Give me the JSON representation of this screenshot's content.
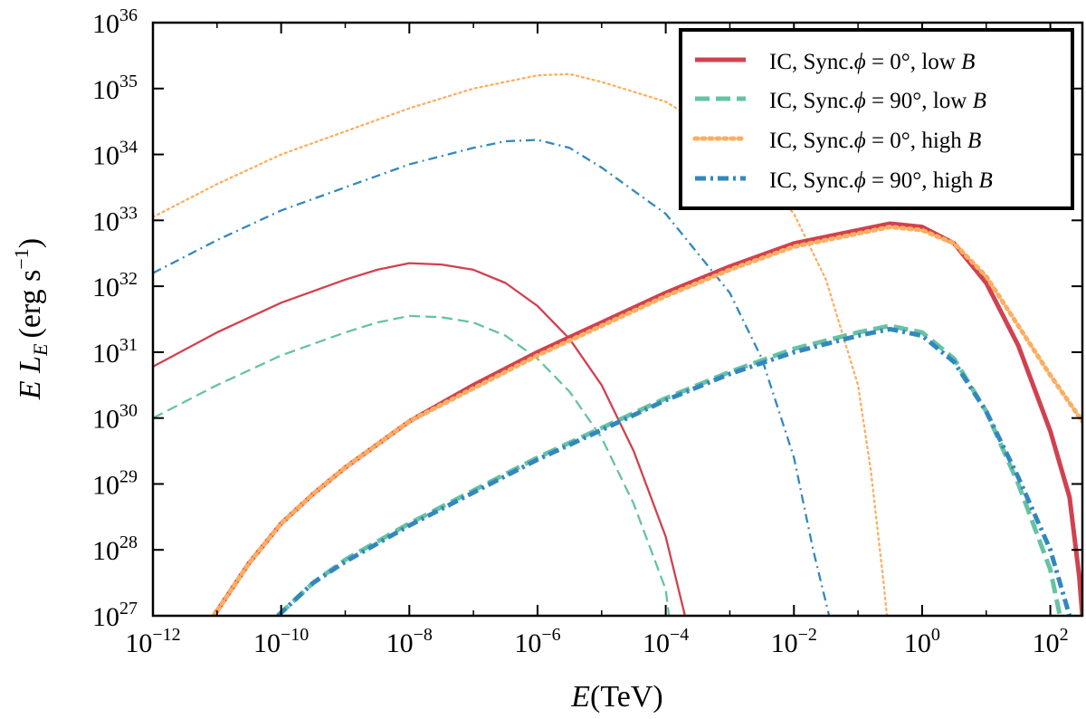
{
  "chart_data": {
    "type": "line",
    "title": "",
    "xlabel": {
      "var": "E",
      "unit": "(TeV)"
    },
    "ylabel": {
      "var": "E L",
      "sub": "E",
      "unit_open": "(erg s",
      "unit_sup": "−1",
      "unit_close": ")"
    },
    "xscale": "log",
    "yscale": "log",
    "xlim_log10": [
      -12,
      2.5
    ],
    "ylim_log10": [
      27,
      36
    ],
    "xticks": [
      {
        "base": "10",
        "exp": "−12",
        "log": -12
      },
      {
        "base": "10",
        "exp": "−10",
        "log": -10
      },
      {
        "base": "10",
        "exp": "−8",
        "log": -8
      },
      {
        "base": "10",
        "exp": "−6",
        "log": -6
      },
      {
        "base": "10",
        "exp": "−4",
        "log": -4
      },
      {
        "base": "10",
        "exp": "−2",
        "log": -2
      },
      {
        "base": "10",
        "exp": "0",
        "log": 0
      },
      {
        "base": "10",
        "exp": "2",
        "log": 2
      }
    ],
    "yticks": [
      {
        "base": "10",
        "exp": "27",
        "log": 27
      },
      {
        "base": "10",
        "exp": "28",
        "log": 28
      },
      {
        "base": "10",
        "exp": "29",
        "log": 29
      },
      {
        "base": "10",
        "exp": "30",
        "log": 30
      },
      {
        "base": "10",
        "exp": "31",
        "log": 31
      },
      {
        "base": "10",
        "exp": "32",
        "log": 32
      },
      {
        "base": "10",
        "exp": "33",
        "log": 33
      },
      {
        "base": "10",
        "exp": "34",
        "log": 34
      },
      {
        "base": "10",
        "exp": "35",
        "log": 35
      },
      {
        "base": "10",
        "exp": "36",
        "log": 36
      }
    ],
    "legend": {
      "placement": "top-right",
      "entries": [
        {
          "prefix": "IC, Sync.",
          "phi": "ϕ",
          "eq": " = 0°, ",
          "b_text": "low ",
          "b_var": "B",
          "color": "#d1414f",
          "dash": "solid"
        },
        {
          "prefix": "IC, Sync.",
          "phi": "ϕ",
          "eq": " = 90°, ",
          "b_text": "low ",
          "b_var": "B",
          "color": "#66c2a5",
          "dash": "dashed"
        },
        {
          "prefix": "IC, Sync.",
          "phi": "ϕ",
          "eq": " = 0°, ",
          "b_text": "high ",
          "b_var": "B",
          "color": "#fdae61",
          "dash": "dotted"
        },
        {
          "prefix": "IC, Sync.",
          "phi": "ϕ",
          "eq": " = 90°, ",
          "b_text": "high ",
          "b_var": "B",
          "color": "#3288bd",
          "dash": "dashdot"
        }
      ]
    },
    "series": [
      {
        "name": "Sync, ϕ=0°, low B",
        "component": "synchrotron",
        "color": "#d1414f",
        "dash": "solid",
        "width": "thin",
        "points": [
          [
            -12,
            30.78
          ],
          [
            -11,
            31.3
          ],
          [
            -10,
            31.75
          ],
          [
            -9,
            32.1
          ],
          [
            -8.5,
            32.25
          ],
          [
            -8,
            32.35
          ],
          [
            -7.5,
            32.33
          ],
          [
            -7,
            32.25
          ],
          [
            -6.5,
            32.05
          ],
          [
            -6,
            31.7
          ],
          [
            -5.5,
            31.2
          ],
          [
            -5,
            30.5
          ],
          [
            -4.5,
            29.5
          ],
          [
            -4,
            28.2
          ],
          [
            -3.7,
            27
          ]
        ]
      },
      {
        "name": "Sync, ϕ=90°, low B",
        "component": "synchrotron",
        "color": "#66c2a5",
        "dash": "dashed",
        "width": "thin",
        "points": [
          [
            -12,
            30.0
          ],
          [
            -11,
            30.5
          ],
          [
            -10,
            30.95
          ],
          [
            -9,
            31.3
          ],
          [
            -8.5,
            31.45
          ],
          [
            -8,
            31.55
          ],
          [
            -7.5,
            31.53
          ],
          [
            -7,
            31.45
          ],
          [
            -6.5,
            31.25
          ],
          [
            -6,
            30.9
          ],
          [
            -5.5,
            30.4
          ],
          [
            -5,
            29.7
          ],
          [
            -4.5,
            28.7
          ],
          [
            -4,
            27.4
          ],
          [
            -3.95,
            27
          ]
        ]
      },
      {
        "name": "Sync, ϕ=0°, high B",
        "component": "synchrotron",
        "color": "#fdae61",
        "dash": "dotted",
        "width": "thin",
        "points": [
          [
            -12,
            33.05
          ],
          [
            -11,
            33.55
          ],
          [
            -10,
            34.0
          ],
          [
            -9,
            34.35
          ],
          [
            -8,
            34.7
          ],
          [
            -7,
            35.0
          ],
          [
            -6,
            35.2
          ],
          [
            -5.5,
            35.22
          ],
          [
            -5,
            35.1
          ],
          [
            -4,
            34.8
          ],
          [
            -3,
            34.2
          ],
          [
            -2,
            33.1
          ],
          [
            -1.5,
            32.1
          ],
          [
            -1,
            30.5
          ],
          [
            -0.8,
            29.2
          ],
          [
            -0.6,
            27.5
          ],
          [
            -0.55,
            27
          ]
        ]
      },
      {
        "name": "Sync, ϕ=90°, high B",
        "component": "synchrotron",
        "color": "#3288bd",
        "dash": "dashdot",
        "width": "thin",
        "points": [
          [
            -12,
            32.2
          ],
          [
            -11,
            32.7
          ],
          [
            -10,
            33.15
          ],
          [
            -9,
            33.5
          ],
          [
            -8,
            33.85
          ],
          [
            -7,
            34.1
          ],
          [
            -6.5,
            34.2
          ],
          [
            -6,
            34.22
          ],
          [
            -5.5,
            34.1
          ],
          [
            -5,
            33.8
          ],
          [
            -4,
            33.1
          ],
          [
            -3,
            31.9
          ],
          [
            -2.5,
            30.9
          ],
          [
            -2,
            29.4
          ],
          [
            -1.7,
            28.0
          ],
          [
            -1.45,
            27
          ]
        ]
      },
      {
        "name": "IC, ϕ=0°, low B",
        "component": "inverse Compton",
        "color": "#d1414f",
        "dash": "solid",
        "width": "thick",
        "points": [
          [
            -11.05,
            27
          ],
          [
            -10.5,
            27.8
          ],
          [
            -10,
            28.4
          ],
          [
            -9.5,
            28.85
          ],
          [
            -9,
            29.25
          ],
          [
            -8.5,
            29.6
          ],
          [
            -8,
            29.95
          ],
          [
            -7,
            30.5
          ],
          [
            -6,
            31.0
          ],
          [
            -5,
            31.45
          ],
          [
            -4,
            31.9
          ],
          [
            -3,
            32.3
          ],
          [
            -2,
            32.65
          ],
          [
            -1,
            32.85
          ],
          [
            -0.5,
            32.95
          ],
          [
            0,
            32.9
          ],
          [
            0.5,
            32.65
          ],
          [
            1,
            32.05
          ],
          [
            1.5,
            31.1
          ],
          [
            2,
            29.8
          ],
          [
            2.3,
            28.8
          ],
          [
            2.45,
            27.6
          ],
          [
            2.5,
            27
          ]
        ]
      },
      {
        "name": "IC, ϕ=0°, high B",
        "component": "inverse Compton",
        "color": "#fdae61",
        "dash": "dotted",
        "width": "thick",
        "points": [
          [
            -11.05,
            27
          ],
          [
            -10.5,
            27.8
          ],
          [
            -10,
            28.4
          ],
          [
            -9.5,
            28.85
          ],
          [
            -9,
            29.25
          ],
          [
            -8.5,
            29.6
          ],
          [
            -8,
            29.95
          ],
          [
            -7,
            30.45
          ],
          [
            -6,
            30.95
          ],
          [
            -5,
            31.4
          ],
          [
            -4,
            31.85
          ],
          [
            -3,
            32.25
          ],
          [
            -2,
            32.6
          ],
          [
            -1,
            32.8
          ],
          [
            -0.5,
            32.9
          ],
          [
            0,
            32.85
          ],
          [
            0.5,
            32.65
          ],
          [
            1,
            32.15
          ],
          [
            1.5,
            31.4
          ],
          [
            2,
            30.65
          ],
          [
            2.5,
            29.95
          ]
        ]
      },
      {
        "name": "IC, ϕ=90°, low B",
        "component": "inverse Compton",
        "color": "#66c2a5",
        "dash": "dashed",
        "width": "thick",
        "points": [
          [
            -10.05,
            27
          ],
          [
            -9.5,
            27.5
          ],
          [
            -9,
            27.85
          ],
          [
            -8,
            28.4
          ],
          [
            -7,
            28.9
          ],
          [
            -6,
            29.4
          ],
          [
            -5,
            29.85
          ],
          [
            -4,
            30.3
          ],
          [
            -3,
            30.7
          ],
          [
            -2,
            31.05
          ],
          [
            -1,
            31.3
          ],
          [
            -0.5,
            31.4
          ],
          [
            0,
            31.3
          ],
          [
            0.5,
            30.9
          ],
          [
            1,
            30.1
          ],
          [
            1.5,
            29.0
          ],
          [
            2,
            27.7
          ],
          [
            2.15,
            27
          ]
        ]
      },
      {
        "name": "IC, ϕ=90°, high B",
        "component": "inverse Compton",
        "color": "#3288bd",
        "dash": "dashdot",
        "width": "thick",
        "points": [
          [
            -10.05,
            27
          ],
          [
            -9.5,
            27.5
          ],
          [
            -9,
            27.82
          ],
          [
            -8,
            28.37
          ],
          [
            -7,
            28.87
          ],
          [
            -6,
            29.37
          ],
          [
            -5,
            29.82
          ],
          [
            -4,
            30.27
          ],
          [
            -3,
            30.67
          ],
          [
            -2,
            31.0
          ],
          [
            -1,
            31.25
          ],
          [
            -0.5,
            31.35
          ],
          [
            0,
            31.25
          ],
          [
            0.5,
            30.85
          ],
          [
            1,
            30.1
          ],
          [
            1.5,
            29.1
          ],
          [
            2,
            28.0
          ],
          [
            2.3,
            27
          ]
        ]
      }
    ]
  }
}
